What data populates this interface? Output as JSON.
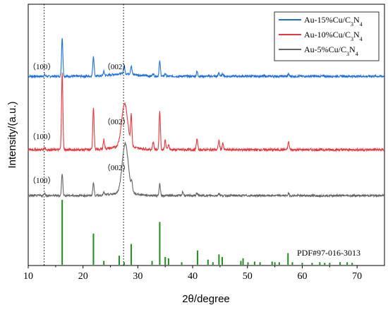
{
  "chart_data": {
    "type": "line",
    "title": "",
    "xlabel": "2θ/degree",
    "ylabel": "Intensity/(a.u.)",
    "xlim": [
      10,
      75
    ],
    "x_ticks": [
      10,
      20,
      30,
      40,
      50,
      60,
      70
    ],
    "y_ticks": "none",
    "grid": false,
    "legend_position": "top-right",
    "reference_lines_x": [
      12.9,
      27.4
    ],
    "series": [
      {
        "name": "Au-15%Cu/C3N4",
        "color": "#1f6fe0",
        "peaks": [
          [
            13.0,
            2
          ],
          [
            16.2,
            58
          ],
          [
            21.9,
            30
          ],
          [
            23.8,
            6
          ],
          [
            27.5,
            12
          ],
          [
            28.8,
            12
          ],
          [
            32.8,
            4
          ],
          [
            34.0,
            22
          ],
          [
            35.0,
            4
          ],
          [
            40.8,
            7
          ],
          [
            44.8,
            5
          ],
          [
            45.5,
            4
          ],
          [
            57.5,
            3
          ]
        ],
        "labels": [
          {
            "x": 13,
            "text": "（100）"
          },
          {
            "x": 27.4,
            "text": "（002）"
          }
        ]
      },
      {
        "name": "Au-10%Cu/C3N4",
        "color": "#e8383d",
        "peaks": [
          [
            13.0,
            3
          ],
          [
            16.2,
            100
          ],
          [
            21.9,
            55
          ],
          [
            23.8,
            12
          ],
          [
            27.6,
            55
          ],
          [
            28.8,
            38
          ],
          [
            32.8,
            10
          ],
          [
            34.0,
            50
          ],
          [
            35.0,
            12
          ],
          [
            35.6,
            7
          ],
          [
            40.8,
            14
          ],
          [
            44.8,
            12
          ],
          [
            45.5,
            8
          ],
          [
            57.5,
            10
          ]
        ],
        "labels": [
          {
            "x": 13,
            "text": "（100）"
          },
          {
            "x": 27.4,
            "text": "（002）"
          }
        ]
      },
      {
        "name": "Au-5%Cu/C3N4",
        "color": "#666666",
        "peaks": [
          [
            13.0,
            4
          ],
          [
            16.2,
            35
          ],
          [
            21.9,
            20
          ],
          [
            23.8,
            4
          ],
          [
            27.7,
            78
          ],
          [
            28.9,
            15
          ],
          [
            34.0,
            18
          ],
          [
            38.2,
            6
          ],
          [
            40.8,
            4
          ],
          [
            44.8,
            4
          ],
          [
            57.5,
            3
          ]
        ],
        "labels": [
          {
            "x": 13,
            "text": "（100）"
          },
          {
            "x": 27.4,
            "text": "（002）"
          }
        ]
      }
    ],
    "reference_pattern": {
      "name": "PDF#97-016-3013",
      "color": "#228b22",
      "sticks": [
        [
          16.2,
          100
        ],
        [
          21.9,
          48
        ],
        [
          23.8,
          6
        ],
        [
          26.6,
          14
        ],
        [
          27.5,
          4
        ],
        [
          28.8,
          32
        ],
        [
          32.6,
          6
        ],
        [
          34.0,
          66
        ],
        [
          35.0,
          12
        ],
        [
          35.6,
          10
        ],
        [
          38.0,
          4
        ],
        [
          40.9,
          22
        ],
        [
          42.8,
          8
        ],
        [
          43.7,
          4
        ],
        [
          44.8,
          16
        ],
        [
          45.4,
          12
        ],
        [
          48.8,
          6
        ],
        [
          49.2,
          10
        ],
        [
          50.1,
          4
        ],
        [
          51.3,
          5
        ],
        [
          52.3,
          4
        ],
        [
          54.5,
          5
        ],
        [
          55.0,
          4
        ],
        [
          55.8,
          4
        ],
        [
          57.4,
          18
        ],
        [
          58.2,
          4
        ],
        [
          60.0,
          3
        ],
        [
          61.8,
          3
        ],
        [
          63.2,
          4
        ],
        [
          64.1,
          3
        ],
        [
          65.0,
          3
        ],
        [
          66.9,
          4
        ],
        [
          68.2,
          4
        ],
        [
          69.1,
          3
        ]
      ]
    }
  }
}
